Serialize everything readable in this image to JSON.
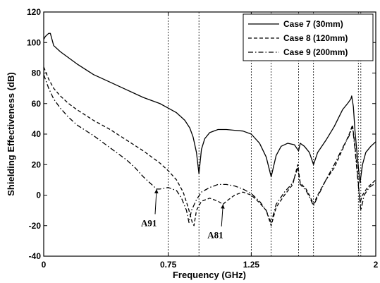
{
  "chart_data": {
    "type": "line",
    "xlabel": "Frequency (GHz)",
    "ylabel": "Shielding Effectiveness (dB)",
    "xlim": [
      0,
      2
    ],
    "ylim": [
      -40,
      120
    ],
    "xticks": [
      0,
      0.75,
      1.25,
      2
    ],
    "xtick_labels": [
      "0",
      "0.75",
      "1.25",
      "2"
    ],
    "yticks": [
      -40,
      -20,
      0,
      20,
      40,
      60,
      80,
      100,
      120
    ],
    "ytick_labels": [
      "-40",
      "-20",
      "0",
      "20",
      "40",
      "60",
      "80",
      "100",
      "120"
    ],
    "grid": false,
    "legend_position": "top-right",
    "vlines": [
      0.75,
      0.935,
      1.25,
      1.37,
      1.535,
      1.625,
      1.895,
      1.91
    ],
    "series": [
      {
        "name": "Case 7 (30mm)",
        "style": "solid",
        "points": [
          [
            0,
            102
          ],
          [
            0.01,
            104
          ],
          [
            0.02,
            105
          ],
          [
            0.03,
            106
          ],
          [
            0.04,
            106
          ],
          [
            0.06,
            98
          ],
          [
            0.1,
            94
          ],
          [
            0.15,
            90
          ],
          [
            0.2,
            86
          ],
          [
            0.3,
            79
          ],
          [
            0.4,
            74
          ],
          [
            0.5,
            69
          ],
          [
            0.6,
            64
          ],
          [
            0.7,
            60
          ],
          [
            0.75,
            57
          ],
          [
            0.8,
            54
          ],
          [
            0.85,
            49
          ],
          [
            0.88,
            44
          ],
          [
            0.9,
            38
          ],
          [
            0.92,
            28
          ],
          [
            0.935,
            14
          ],
          [
            0.95,
            30
          ],
          [
            0.97,
            37
          ],
          [
            1.0,
            41
          ],
          [
            1.05,
            43
          ],
          [
            1.1,
            43
          ],
          [
            1.15,
            42.5
          ],
          [
            1.2,
            42
          ],
          [
            1.25,
            40
          ],
          [
            1.3,
            34
          ],
          [
            1.34,
            25
          ],
          [
            1.37,
            12
          ],
          [
            1.4,
            26
          ],
          [
            1.43,
            32
          ],
          [
            1.47,
            34
          ],
          [
            1.51,
            33
          ],
          [
            1.535,
            29
          ],
          [
            1.545,
            34
          ],
          [
            1.57,
            32
          ],
          [
            1.6,
            28
          ],
          [
            1.625,
            20
          ],
          [
            1.65,
            28
          ],
          [
            1.7,
            36
          ],
          [
            1.75,
            45
          ],
          [
            1.8,
            56
          ],
          [
            1.83,
            60
          ],
          [
            1.85,
            63
          ],
          [
            1.855,
            65
          ],
          [
            1.865,
            58
          ],
          [
            1.875,
            42
          ],
          [
            1.89,
            24
          ],
          [
            1.905,
            8
          ],
          [
            1.92,
            20
          ],
          [
            1.94,
            28
          ],
          [
            1.97,
            32
          ],
          [
            2.0,
            35
          ]
        ]
      },
      {
        "name": "Case 8 (120mm)",
        "style": "dashed",
        "points": [
          [
            0,
            84
          ],
          [
            0.03,
            76
          ],
          [
            0.06,
            70
          ],
          [
            0.1,
            65
          ],
          [
            0.15,
            60
          ],
          [
            0.2,
            56
          ],
          [
            0.3,
            49
          ],
          [
            0.4,
            43
          ],
          [
            0.5,
            36
          ],
          [
            0.6,
            29
          ],
          [
            0.7,
            21
          ],
          [
            0.75,
            16
          ],
          [
            0.8,
            10
          ],
          [
            0.84,
            2
          ],
          [
            0.87,
            -8
          ],
          [
            0.895,
            -18
          ],
          [
            0.905,
            -20
          ],
          [
            0.92,
            -10
          ],
          [
            0.95,
            -4
          ],
          [
            1.0,
            -2
          ],
          [
            1.05,
            -4
          ],
          [
            1.08,
            -6
          ],
          [
            1.1,
            -4
          ],
          [
            1.15,
            0
          ],
          [
            1.2,
            2
          ],
          [
            1.25,
            0
          ],
          [
            1.3,
            -5
          ],
          [
            1.34,
            -10
          ],
          [
            1.37,
            -20
          ],
          [
            1.4,
            -8
          ],
          [
            1.45,
            0
          ],
          [
            1.5,
            7
          ],
          [
            1.53,
            20
          ],
          [
            1.545,
            8
          ],
          [
            1.58,
            4
          ],
          [
            1.6,
            0
          ],
          [
            1.625,
            -6
          ],
          [
            1.65,
            0
          ],
          [
            1.7,
            10
          ],
          [
            1.75,
            18
          ],
          [
            1.8,
            30
          ],
          [
            1.84,
            40
          ],
          [
            1.86,
            46
          ],
          [
            1.875,
            32
          ],
          [
            1.89,
            15
          ],
          [
            1.905,
            -5
          ],
          [
            1.92,
            0
          ],
          [
            1.95,
            5
          ],
          [
            1.98,
            8
          ],
          [
            2.0,
            10
          ]
        ]
      },
      {
        "name": "Case 9 (200mm)",
        "style": "dashdot",
        "points": [
          [
            0,
            79
          ],
          [
            0.03,
            70
          ],
          [
            0.06,
            63
          ],
          [
            0.1,
            57
          ],
          [
            0.15,
            51
          ],
          [
            0.2,
            46
          ],
          [
            0.3,
            39
          ],
          [
            0.4,
            31
          ],
          [
            0.5,
            23
          ],
          [
            0.55,
            18
          ],
          [
            0.6,
            12
          ],
          [
            0.65,
            7
          ],
          [
            0.68,
            4
          ],
          [
            0.7,
            4
          ],
          [
            0.75,
            5
          ],
          [
            0.8,
            3
          ],
          [
            0.83,
            -2
          ],
          [
            0.86,
            -10
          ],
          [
            0.875,
            -18
          ],
          [
            0.89,
            -10
          ],
          [
            0.92,
            -3
          ],
          [
            0.95,
            2
          ],
          [
            1.0,
            5
          ],
          [
            1.05,
            7
          ],
          [
            1.1,
            7
          ],
          [
            1.15,
            6
          ],
          [
            1.2,
            4
          ],
          [
            1.25,
            1
          ],
          [
            1.3,
            -4
          ],
          [
            1.34,
            -10
          ],
          [
            1.37,
            -18
          ],
          [
            1.4,
            -6
          ],
          [
            1.45,
            2
          ],
          [
            1.5,
            8
          ],
          [
            1.53,
            18
          ],
          [
            1.545,
            7
          ],
          [
            1.58,
            3
          ],
          [
            1.6,
            -1
          ],
          [
            1.625,
            -7
          ],
          [
            1.65,
            -1
          ],
          [
            1.7,
            10
          ],
          [
            1.75,
            20
          ],
          [
            1.8,
            31
          ],
          [
            1.84,
            39
          ],
          [
            1.86,
            45
          ],
          [
            1.875,
            30
          ],
          [
            1.89,
            12
          ],
          [
            1.91,
            -10
          ],
          [
            1.93,
            0
          ],
          [
            1.96,
            5
          ],
          [
            2.0,
            8
          ]
        ]
      }
    ],
    "annotations": [
      {
        "text": "A91",
        "target": [
          0.68,
          4
        ],
        "label_at": [
          0.62,
          -18
        ]
      },
      {
        "text": "A81",
        "target": [
          1.08,
          -6
        ],
        "label_at": [
          1.02,
          -26
        ]
      }
    ]
  }
}
